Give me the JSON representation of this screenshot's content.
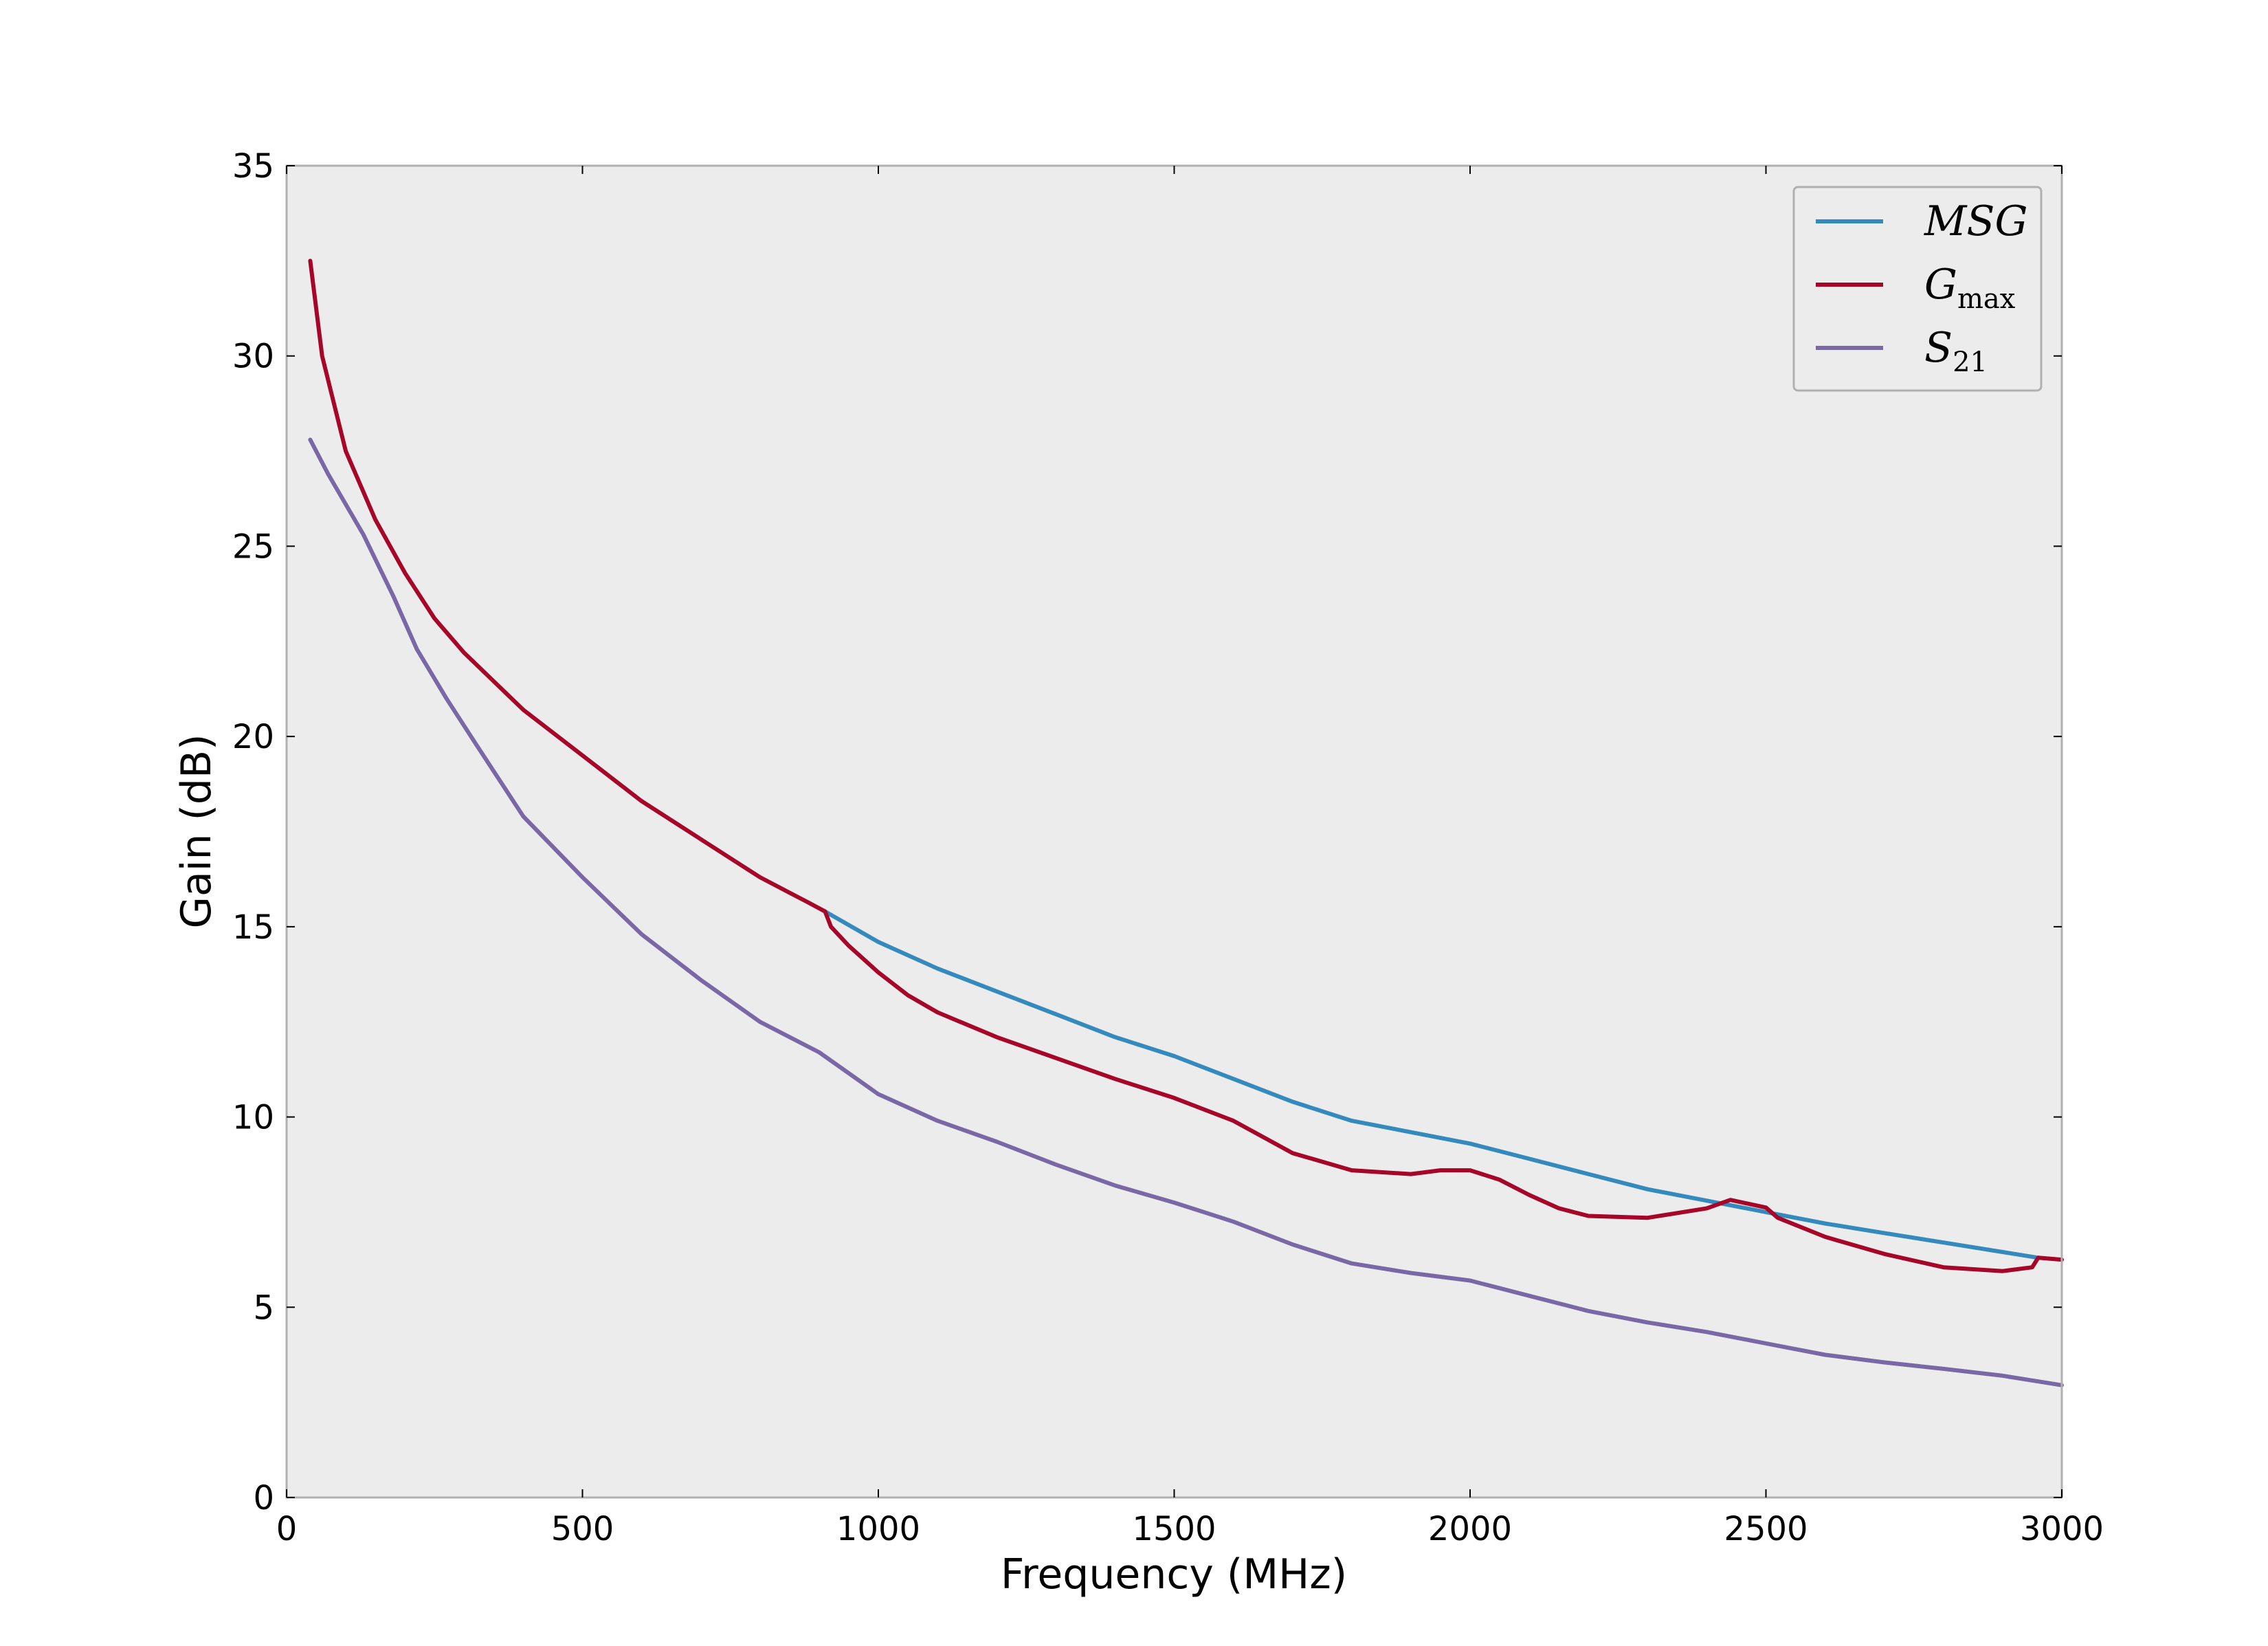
{
  "chart_data": {
    "type": "line",
    "title": "",
    "xlabel": "Frequency (MHz)",
    "ylabel": "Gain (dB)",
    "xlim": [
      0,
      3000
    ],
    "ylim": [
      0,
      35
    ],
    "xticks": [
      0,
      500,
      1000,
      1500,
      2000,
      2500,
      3000
    ],
    "yticks": [
      0,
      5,
      10,
      15,
      20,
      25,
      30,
      35
    ],
    "grid": false,
    "legend_position": "top-right",
    "colors": {
      "axes_background": "#ececec",
      "frame": "#b0b0b0"
    },
    "series": [
      {
        "name": "MSG",
        "legend_main": "MSG",
        "legend_sub": "",
        "color": "#348abd",
        "points": [
          [
            910,
            15.4
          ],
          [
            1000,
            14.6
          ],
          [
            1100,
            13.9
          ],
          [
            1200,
            13.3
          ],
          [
            1300,
            12.7
          ],
          [
            1400,
            12.1
          ],
          [
            1500,
            11.6
          ],
          [
            1600,
            11.0
          ],
          [
            1700,
            10.4
          ],
          [
            1800,
            9.9
          ],
          [
            1900,
            9.6
          ],
          [
            2000,
            9.3
          ],
          [
            2100,
            8.9
          ],
          [
            2200,
            8.5
          ],
          [
            2300,
            8.1
          ],
          [
            2400,
            7.8
          ],
          [
            2500,
            7.5
          ],
          [
            2600,
            7.2
          ],
          [
            2700,
            6.95
          ],
          [
            2800,
            6.7
          ],
          [
            2900,
            6.45
          ],
          [
            2960,
            6.3
          ]
        ]
      },
      {
        "name": "Gmax",
        "legend_main": "G",
        "legend_sub": "max",
        "color": "#a60628",
        "points": [
          [
            40,
            32.5
          ],
          [
            60,
            30.0
          ],
          [
            100,
            27.5
          ],
          [
            150,
            25.7
          ],
          [
            200,
            24.3
          ],
          [
            250,
            23.1
          ],
          [
            300,
            22.2
          ],
          [
            400,
            20.7
          ],
          [
            500,
            19.5
          ],
          [
            600,
            18.3
          ],
          [
            700,
            17.3
          ],
          [
            800,
            16.3
          ],
          [
            880,
            15.65
          ],
          [
            910,
            15.4
          ],
          [
            920,
            15.0
          ],
          [
            950,
            14.5
          ],
          [
            1000,
            13.8
          ],
          [
            1050,
            13.2
          ],
          [
            1100,
            12.75
          ],
          [
            1200,
            12.1
          ],
          [
            1300,
            11.55
          ],
          [
            1400,
            11.0
          ],
          [
            1500,
            10.5
          ],
          [
            1600,
            9.9
          ],
          [
            1700,
            9.05
          ],
          [
            1800,
            8.6
          ],
          [
            1900,
            8.5
          ],
          [
            1950,
            8.6
          ],
          [
            2000,
            8.6
          ],
          [
            2050,
            8.35
          ],
          [
            2100,
            7.95
          ],
          [
            2150,
            7.6
          ],
          [
            2200,
            7.4
          ],
          [
            2300,
            7.35
          ],
          [
            2400,
            7.6
          ],
          [
            2440,
            7.82
          ],
          [
            2500,
            7.62
          ],
          [
            2520,
            7.35
          ],
          [
            2600,
            6.85
          ],
          [
            2700,
            6.4
          ],
          [
            2800,
            6.05
          ],
          [
            2900,
            5.95
          ],
          [
            2950,
            6.05
          ],
          [
            2960,
            6.3
          ],
          [
            3000,
            6.25
          ]
        ]
      },
      {
        "name": "S21",
        "legend_main": "S",
        "legend_sub": "21",
        "color": "#7a68a6",
        "points": [
          [
            40,
            27.8
          ],
          [
            70,
            26.9
          ],
          [
            130,
            25.3
          ],
          [
            180,
            23.7
          ],
          [
            220,
            22.3
          ],
          [
            270,
            21.0
          ],
          [
            320,
            19.8
          ],
          [
            400,
            17.9
          ],
          [
            500,
            16.3
          ],
          [
            600,
            14.8
          ],
          [
            700,
            13.6
          ],
          [
            800,
            12.5
          ],
          [
            900,
            11.7
          ],
          [
            1000,
            10.6
          ],
          [
            1100,
            9.9
          ],
          [
            1200,
            9.35
          ],
          [
            1300,
            8.75
          ],
          [
            1400,
            8.2
          ],
          [
            1500,
            7.75
          ],
          [
            1600,
            7.25
          ],
          [
            1700,
            6.65
          ],
          [
            1800,
            6.15
          ],
          [
            1900,
            5.9
          ],
          [
            2000,
            5.7
          ],
          [
            2100,
            5.3
          ],
          [
            2200,
            4.9
          ],
          [
            2300,
            4.6
          ],
          [
            2400,
            4.35
          ],
          [
            2500,
            4.05
          ],
          [
            2600,
            3.75
          ],
          [
            2700,
            3.55
          ],
          [
            2800,
            3.38
          ],
          [
            2900,
            3.2
          ],
          [
            3000,
            2.95
          ]
        ]
      }
    ]
  }
}
